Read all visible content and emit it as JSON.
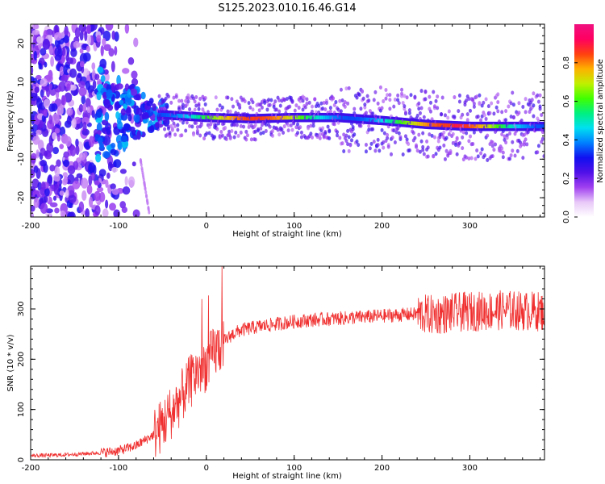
{
  "title": "S125.2023.010.16.46.G14",
  "chart_data": [
    {
      "type": "heatmap",
      "xlabel": "Height of straight line (km)",
      "ylabel": "Frequency (Hz)",
      "xlim": [
        -200,
        385
      ],
      "ylim": [
        -25,
        25
      ],
      "xticks": [
        "-200",
        "-100",
        "0",
        "100",
        "200",
        "300"
      ],
      "yticks": [
        "20",
        "10",
        "0",
        "-10",
        "-20"
      ],
      "colorbar": {
        "label": "Normalized spectral amplitude",
        "range": [
          0,
          1
        ],
        "ticks": [
          "0.0",
          "0.2",
          "0.4",
          "0.6",
          "0.8"
        ],
        "colors": [
          "#ffffff",
          "#e8c8f8",
          "#a040f0",
          "#5010e8",
          "#1010f0",
          "#0080ff",
          "#00e0f0",
          "#00f080",
          "#40ff00",
          "#c0f000",
          "#ffb000",
          "#ff4010",
          "#ff0060",
          "#f01080"
        ]
      },
      "ridge": {
        "x": [
          -50,
          0,
          50,
          100,
          150,
          200,
          250,
          300,
          385
        ],
        "y": [
          1.5,
          0.8,
          0.5,
          0.8,
          0.8,
          0,
          -1,
          -1.5,
          -1.5
        ]
      }
    },
    {
      "type": "line",
      "xlabel": "Height of straight line (km)",
      "ylabel": "SNR (10 * v/v)",
      "xlim": [
        -200,
        385
      ],
      "ylim": [
        0,
        385
      ],
      "xticks": [
        "-200",
        "-100",
        "0",
        "100",
        "200",
        "300"
      ],
      "yticks": [
        "0",
        "100",
        "200",
        "300"
      ],
      "color": "#f03030",
      "series": [
        {
          "x": [
            -200,
            -180,
            -160,
            -140,
            -120,
            -100,
            -80,
            -60,
            -50,
            -40,
            -30,
            -20,
            -10,
            0,
            10,
            20,
            30,
            40,
            60,
            80,
            100,
            120,
            140,
            160,
            180,
            200,
            220,
            240,
            260,
            280,
            300,
            320,
            340,
            360,
            385
          ],
          "values": [
            8,
            9,
            10,
            12,
            14,
            18,
            28,
            50,
            70,
            95,
            120,
            150,
            175,
            190,
            215,
            235,
            250,
            258,
            265,
            270,
            275,
            278,
            280,
            282,
            284,
            286,
            288,
            290,
            288,
            292,
            295,
            296,
            298,
            296,
            295
          ]
        }
      ]
    }
  ]
}
